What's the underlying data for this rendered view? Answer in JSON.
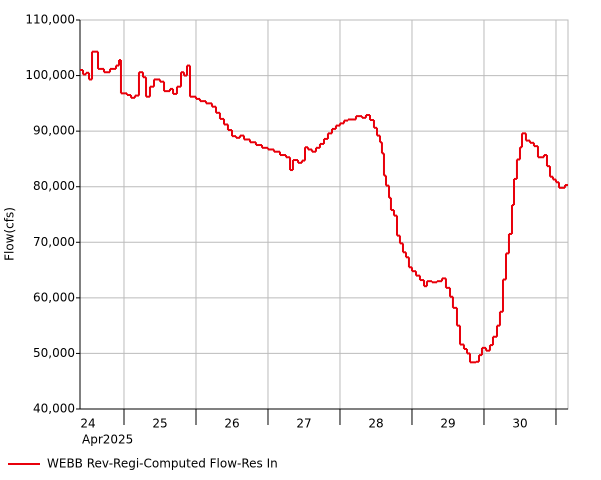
{
  "chart_data": {
    "type": "step-line",
    "y_label": "Flow(cfs)",
    "x_sublabel": "Apr2025",
    "xlim": [
      24.389,
      31.167
    ],
    "xticks": [
      {
        "value": 24.5,
        "label": "24"
      },
      {
        "value": 25.5,
        "label": "25"
      },
      {
        "value": 26.5,
        "label": "26"
      },
      {
        "value": 27.5,
        "label": "27"
      },
      {
        "value": 28.5,
        "label": "28"
      },
      {
        "value": 29.5,
        "label": "29"
      },
      {
        "value": 30.5,
        "label": "30"
      }
    ],
    "xgrid": [
      25,
      26,
      27,
      28,
      29,
      30,
      31
    ],
    "ylim": [
      40000,
      110000
    ],
    "yticks": [
      {
        "value": 40000,
        "label": "40,000"
      },
      {
        "value": 50000,
        "label": "50,000"
      },
      {
        "value": 60000,
        "label": "60,000"
      },
      {
        "value": 70000,
        "label": "70,000"
      },
      {
        "value": 80000,
        "label": "80,000"
      },
      {
        "value": 90000,
        "label": "90,000"
      },
      {
        "value": 100000,
        "label": "100,000"
      },
      {
        "value": 110000,
        "label": "110,000"
      }
    ],
    "grid": true,
    "x": [
      24.389,
      24.431,
      24.472,
      24.514,
      24.556,
      24.639,
      24.722,
      24.806,
      24.889,
      24.931,
      24.958,
      25.042,
      25.097,
      25.153,
      25.208,
      25.264,
      25.306,
      25.361,
      25.417,
      25.5,
      25.556,
      25.639,
      25.681,
      25.736,
      25.792,
      25.833,
      25.875,
      25.917,
      26,
      26.056,
      26.139,
      26.222,
      26.278,
      26.333,
      26.389,
      26.444,
      26.5,
      26.556,
      26.611,
      26.667,
      26.75,
      26.833,
      26.917,
      27,
      27.083,
      27.167,
      27.25,
      27.306,
      27.347,
      27.417,
      27.472,
      27.514,
      27.556,
      27.611,
      27.667,
      27.722,
      27.778,
      27.833,
      27.889,
      27.944,
      28,
      28.056,
      28.111,
      28.222,
      28.306,
      28.361,
      28.417,
      28.472,
      28.514,
      28.556,
      28.583,
      28.611,
      28.639,
      28.681,
      28.708,
      28.75,
      28.792,
      28.833,
      28.875,
      28.917,
      28.958,
      29,
      29.056,
      29.111,
      29.167,
      29.208,
      29.278,
      29.347,
      29.417,
      29.472,
      29.528,
      29.569,
      29.625,
      29.667,
      29.722,
      29.764,
      29.806,
      29.889,
      29.931,
      29.972,
      30.028,
      30.083,
      30.125,
      30.181,
      30.222,
      30.264,
      30.306,
      30.347,
      30.389,
      30.417,
      30.458,
      30.5,
      30.528,
      30.583,
      30.639,
      30.694,
      30.75,
      30.833,
      30.875,
      30.917,
      30.958,
      31,
      31.042,
      31.125
    ],
    "series": [
      {
        "name": "WEBB Rev-Regi-Computed Flow-Res In",
        "color": "#e8000b",
        "values": [
          101000,
          100200,
          100500,
          99300,
          104300,
          101200,
          100600,
          101200,
          101800,
          102800,
          96800,
          96500,
          96000,
          96400,
          100600,
          99700,
          96200,
          98000,
          99300,
          98900,
          97200,
          97600,
          96700,
          98000,
          100600,
          100000,
          101800,
          96200,
          95800,
          95400,
          95000,
          94400,
          93300,
          92200,
          91200,
          90200,
          89100,
          88800,
          89200,
          88500,
          88000,
          87500,
          87000,
          86700,
          86300,
          85700,
          85300,
          83000,
          84800,
          84300,
          84700,
          87100,
          86700,
          86300,
          87000,
          87700,
          88600,
          89600,
          90400,
          91000,
          91400,
          91900,
          92100,
          92700,
          92400,
          92900,
          92000,
          90600,
          89200,
          88000,
          86000,
          82000,
          80200,
          78000,
          75800,
          74800,
          71200,
          69800,
          68200,
          67300,
          65500,
          64800,
          64000,
          63200,
          62100,
          63000,
          62800,
          63000,
          63500,
          61800,
          60200,
          58200,
          55000,
          51600,
          50800,
          50000,
          48400,
          48500,
          49700,
          51000,
          50500,
          51500,
          53000,
          55000,
          57500,
          63300,
          68000,
          71500,
          76700,
          81400,
          84900,
          87100,
          89600,
          88300,
          87900,
          87300,
          85300,
          85700,
          83700,
          81800,
          81300,
          80800,
          79800,
          80300
        ]
      }
    ]
  }
}
